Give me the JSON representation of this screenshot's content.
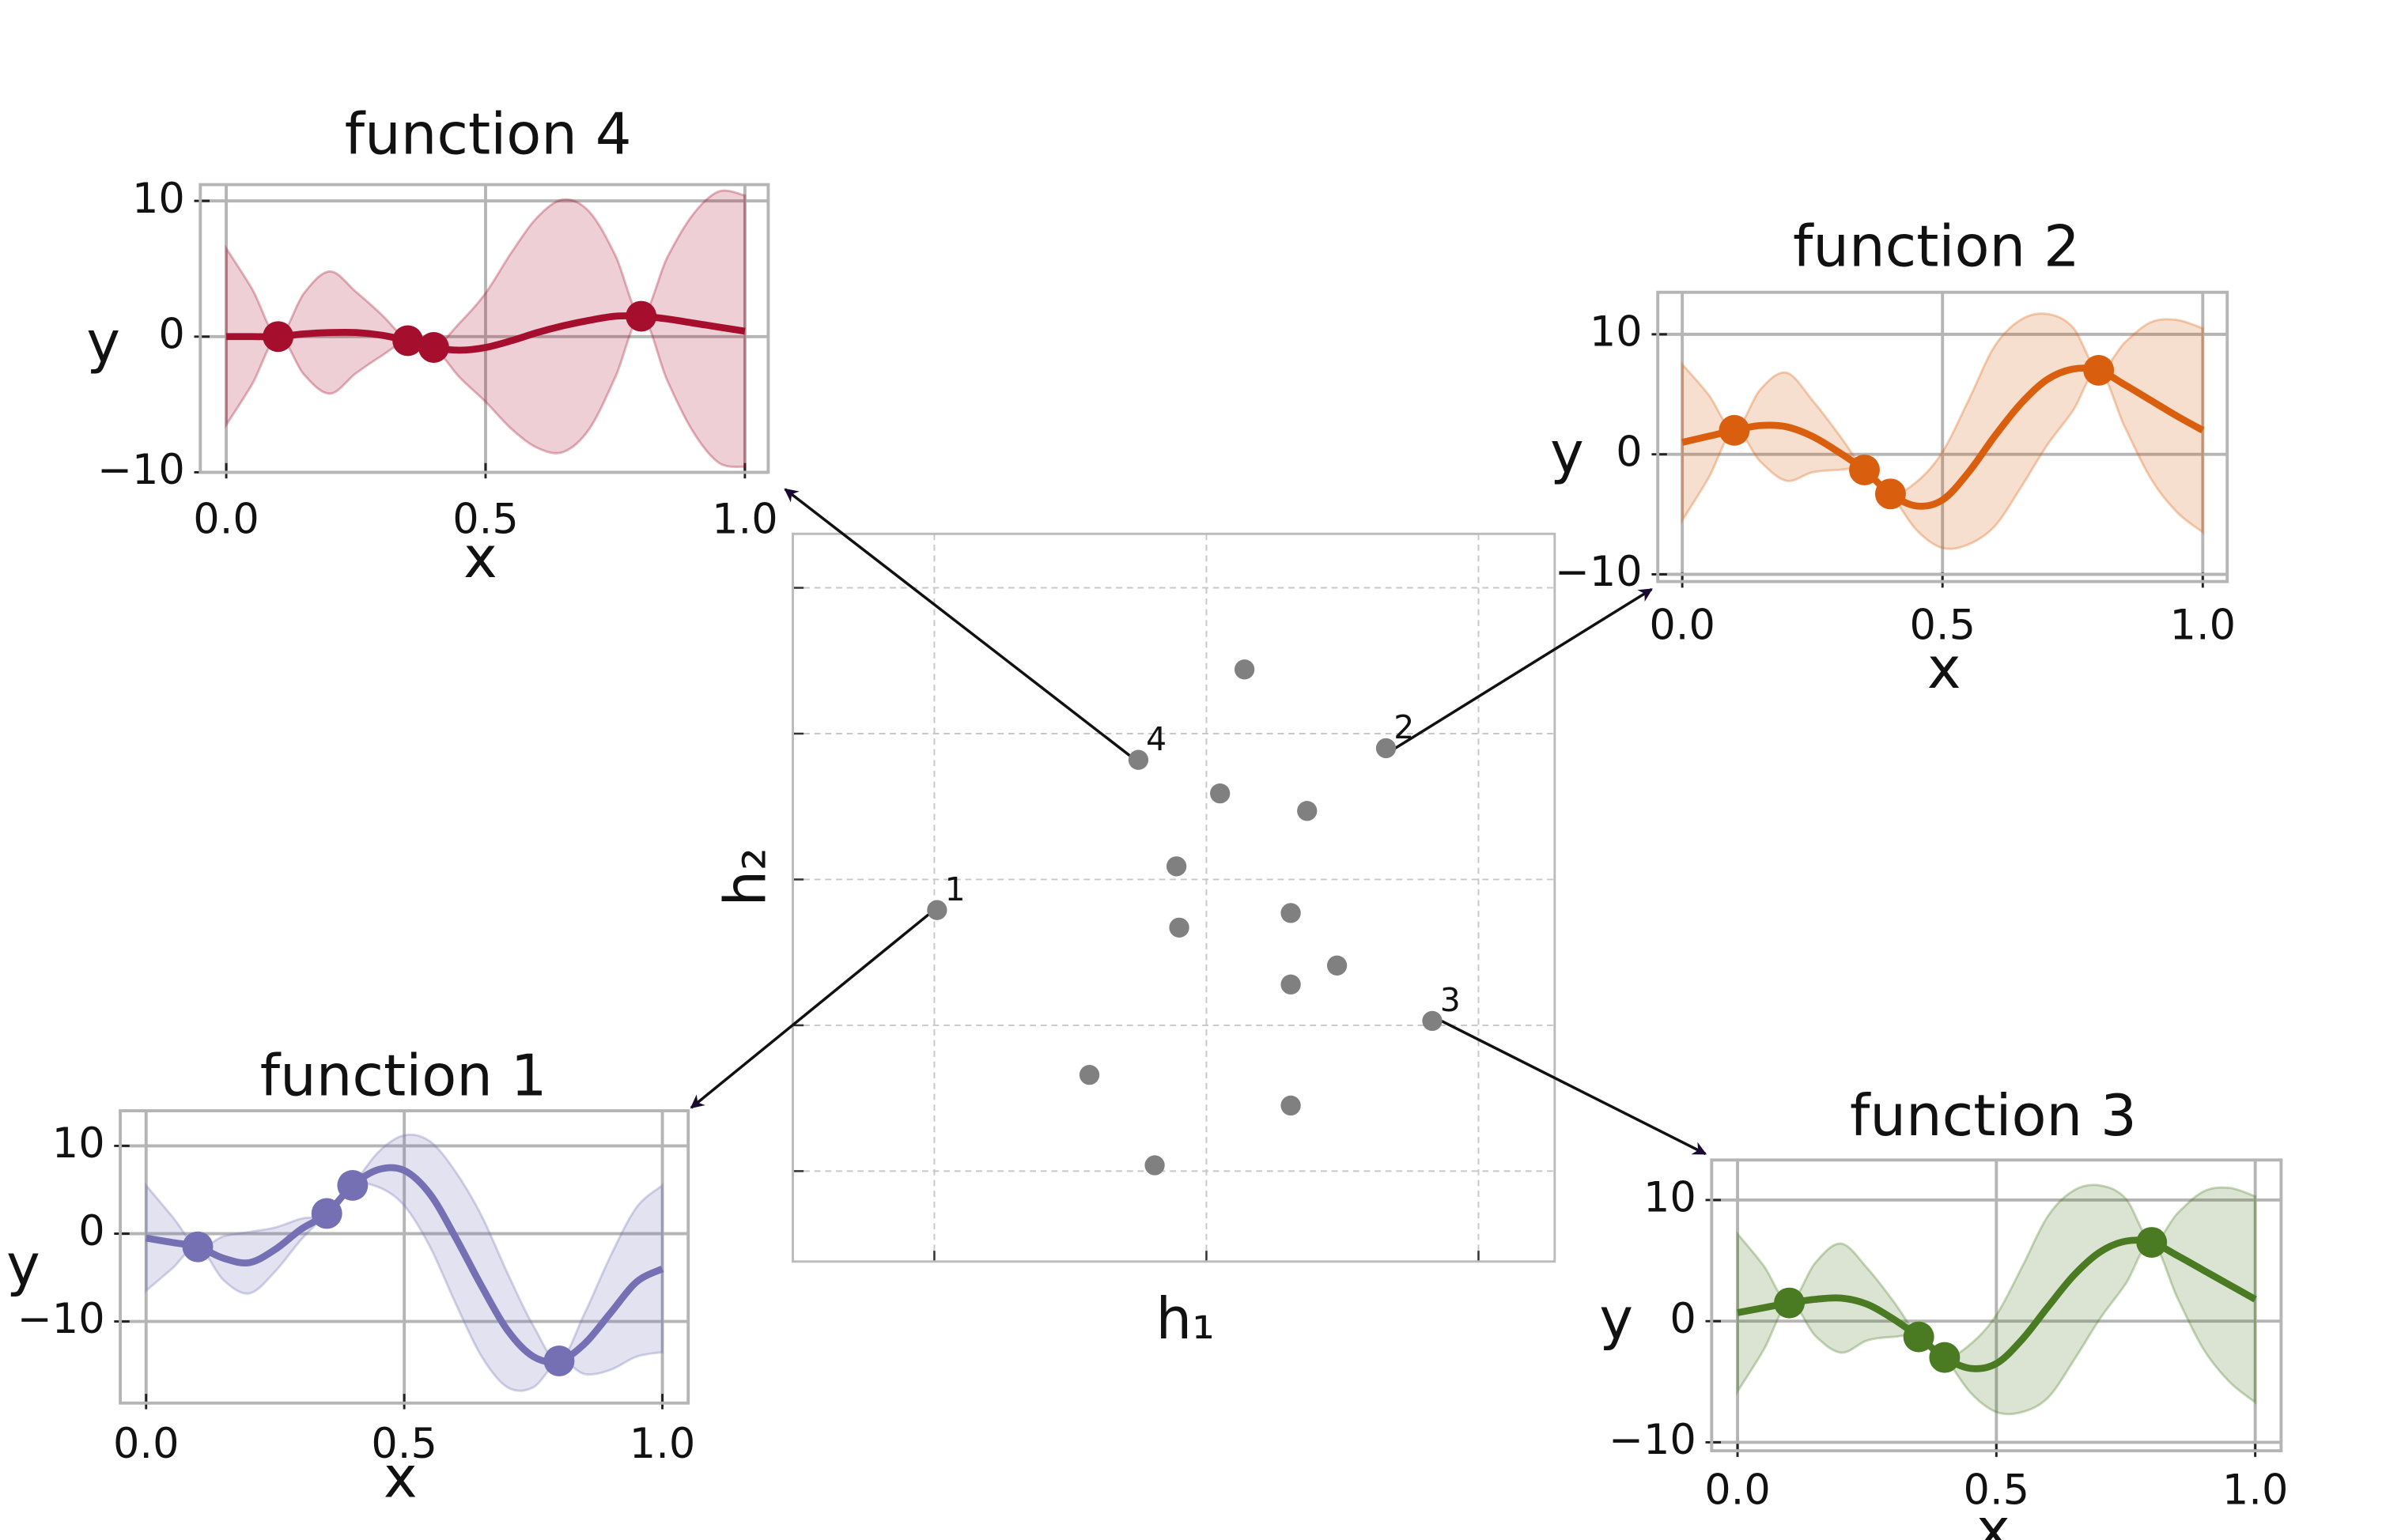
{
  "chart_data": [
    {
      "type": "scatter",
      "xlabel": "h₁",
      "ylabel": "h₂",
      "xlim": [
        -1.52,
        1.28
      ],
      "ylim": [
        -2.62,
        2.37
      ],
      "xticks": [
        -1,
        0,
        1
      ],
      "yticks": [
        -2,
        -1,
        0,
        1,
        2
      ],
      "grid": true,
      "color": "#808080",
      "x": [
        -0.25,
        0.66,
        -0.99,
        0.83,
        0.14,
        0.05,
        0.37,
        -0.11,
        -0.1,
        0.31,
        0.48,
        0.31,
        -0.43,
        0.31,
        -0.19
      ],
      "y": [
        0.82,
        0.9,
        -0.21,
        -0.97,
        1.44,
        0.59,
        0.47,
        0.09,
        -0.33,
        -0.23,
        -0.59,
        -0.72,
        -1.34,
        -1.55,
        -1.96
      ],
      "labels": [
        "4",
        "2",
        "1",
        "3",
        null,
        null,
        null,
        null,
        null,
        null,
        null,
        null,
        null,
        null,
        null
      ]
    },
    {
      "type": "line",
      "title": "function 4",
      "xlabel": "x",
      "ylabel": "y",
      "color": "#a50f2d",
      "xlim": [
        -0.05,
        1.045
      ],
      "ylim": [
        -10,
        11.2
      ],
      "xticks": [
        {
          "value": 0,
          "label": "0.0"
        },
        {
          "value": 0.5,
          "label": "0.5"
        },
        {
          "value": 1,
          "label": "1.0"
        }
      ],
      "yticks": [
        {
          "value": -10,
          "label": "−10"
        },
        0,
        10
      ],
      "grid": true,
      "x": [
        0,
        0.05,
        0.1,
        0.15,
        0.2,
        0.25,
        0.3,
        0.35,
        0.4,
        0.45,
        0.5,
        0.55,
        0.6,
        0.65,
        0.7,
        0.75,
        0.8,
        0.85,
        0.9,
        0.95,
        1
      ],
      "mean": [
        0,
        0,
        0,
        0.2,
        0.3,
        0.3,
        0.1,
        -0.3,
        -0.8,
        -1.0,
        -0.8,
        -0.3,
        0.3,
        0.8,
        1.2,
        1.5,
        1.5,
        1.3,
        1.0,
        0.7,
        0.4
      ],
      "upper": [
        6.5,
        3.5,
        0,
        3.2,
        4.8,
        3.3,
        1.6,
        -0.3,
        -0.8,
        1.0,
        3.2,
        6.2,
        8.8,
        10.1,
        9.2,
        6.0,
        1.5,
        5.8,
        9.0,
        10.7,
        10.4
      ],
      "lower": [
        -6.5,
        -3.5,
        0,
        -2.8,
        -4.2,
        -2.7,
        -1.4,
        -0.3,
        -0.8,
        -3.0,
        -4.8,
        -6.8,
        -8.2,
        -8.5,
        -6.8,
        -3.0,
        1.5,
        -3.2,
        -7.0,
        -9.3,
        -9.6
      ],
      "observed_x": [
        0.1,
        0.35,
        0.4,
        0.8
      ],
      "observed_y": [
        0,
        -0.3,
        -0.8,
        1.5
      ]
    },
    {
      "type": "line",
      "title": "function 2",
      "xlabel": "x",
      "ylabel": "y",
      "color": "#d95f0e",
      "xlim": [
        -0.047,
        1.047
      ],
      "ylim": [
        -10.6,
        13.5
      ],
      "xticks": [
        {
          "value": 0,
          "label": "0.0"
        },
        {
          "value": 0.5,
          "label": "0.5"
        },
        {
          "value": 1,
          "label": "1.0"
        }
      ],
      "yticks": [
        {
          "value": -10,
          "label": "−10"
        },
        0,
        10
      ],
      "grid": true,
      "x": [
        0,
        0.05,
        0.1,
        0.15,
        0.2,
        0.25,
        0.3,
        0.35,
        0.4,
        0.45,
        0.5,
        0.55,
        0.6,
        0.65,
        0.7,
        0.75,
        0.8,
        0.85,
        0.9,
        0.95,
        1
      ],
      "mean": [
        1,
        1.5,
        2,
        2.4,
        2.3,
        1.5,
        0.2,
        -1.3,
        -3.3,
        -4.3,
        -3.8,
        -1.5,
        1.5,
        4.2,
        6.2,
        7.1,
        7,
        5.8,
        4.5,
        3.2,
        2
      ],
      "upper": [
        7.5,
        5,
        2,
        5.4,
        6.8,
        4.5,
        1.7,
        -1.3,
        -3.3,
        -2.3,
        0.2,
        4.5,
        9,
        11.2,
        11.7,
        10.6,
        7,
        9.3,
        11,
        11.2,
        10.5
      ],
      "lower": [
        -5.5,
        -2,
        2,
        -0.6,
        -2.2,
        -1.5,
        -1.3,
        -1.3,
        -3.3,
        -6.3,
        -7.8,
        -7.5,
        -6,
        -2.8,
        0.7,
        3.6,
        7,
        2.3,
        -2,
        -4.8,
        -6.5
      ],
      "observed_x": [
        0.1,
        0.35,
        0.4,
        0.8
      ],
      "observed_y": [
        2,
        -1.3,
        -3.3,
        7
      ]
    },
    {
      "type": "line",
      "title": "function 1",
      "xlabel": "x",
      "ylabel": "y",
      "color": "#7570b3",
      "xlim": [
        -0.05,
        1.05
      ],
      "ylim": [
        -19.3,
        14
      ],
      "xticks": [
        {
          "value": 0,
          "label": "0.0"
        },
        {
          "value": 0.5,
          "label": "0.5"
        },
        {
          "value": 1,
          "label": "1.0"
        }
      ],
      "yticks": [
        {
          "value": -10,
          "label": "−10"
        },
        0,
        10
      ],
      "grid": true,
      "x": [
        0,
        0.05,
        0.1,
        0.15,
        0.2,
        0.25,
        0.3,
        0.35,
        0.4,
        0.45,
        0.5,
        0.55,
        0.6,
        0.65,
        0.7,
        0.75,
        0.8,
        0.85,
        0.9,
        0.95,
        1
      ],
      "mean": [
        -0.5,
        -1,
        -1.5,
        -2.8,
        -3.3,
        -1.8,
        0.5,
        2.3,
        5.5,
        7.3,
        7.2,
        4.5,
        -0.5,
        -6,
        -11,
        -14,
        -14.5,
        -12.5,
        -9,
        -5.5,
        -4
      ],
      "upper": [
        5.5,
        2,
        -1.5,
        -0.3,
        0.2,
        0.7,
        1.7,
        2.3,
        5.5,
        9.3,
        11.2,
        10.5,
        7,
        2,
        -4.5,
        -10.5,
        -14.5,
        -9,
        -2.5,
        3,
        5.5
      ],
      "lower": [
        -6.5,
        -4,
        -1.5,
        -5.3,
        -6.8,
        -4.3,
        -0.7,
        2.3,
        5.5,
        5.3,
        3.2,
        -1.5,
        -8,
        -14,
        -17.5,
        -17.5,
        -14.5,
        -16,
        -15.5,
        -14,
        -13.5
      ],
      "observed_x": [
        0.1,
        0.35,
        0.4,
        0.8
      ],
      "observed_y": [
        -1.5,
        2.3,
        5.5,
        -14.5
      ]
    },
    {
      "type": "line",
      "title": "function 3",
      "xlabel": "x",
      "ylabel": "y",
      "color": "#4a7a22",
      "xlim": [
        -0.05,
        1.05
      ],
      "ylim": [
        -10.7,
        13.3
      ],
      "xticks": [
        {
          "value": 0,
          "label": "0.0"
        },
        {
          "value": 0.5,
          "label": "0.5"
        },
        {
          "value": 1,
          "label": "1.0"
        }
      ],
      "yticks": [
        {
          "value": -10,
          "label": "−10"
        },
        0,
        10
      ],
      "grid": true,
      "x": [
        0,
        0.05,
        0.1,
        0.15,
        0.2,
        0.25,
        0.3,
        0.35,
        0.4,
        0.45,
        0.5,
        0.55,
        0.6,
        0.65,
        0.7,
        0.75,
        0.8,
        0.85,
        0.9,
        0.95,
        1
      ],
      "mean": [
        0.7,
        1.1,
        1.5,
        1.8,
        1.9,
        1.4,
        0.2,
        -1.3,
        -3,
        -3.9,
        -3.5,
        -1.5,
        1.2,
        3.8,
        5.7,
        6.6,
        6.5,
        5.4,
        4.2,
        3,
        1.8
      ],
      "upper": [
        7.2,
        4.6,
        1.5,
        4.8,
        6.4,
        4.4,
        1.7,
        -1.3,
        -3,
        -1.9,
        0.5,
        4.5,
        8.7,
        10.8,
        11.2,
        10.1,
        6.5,
        8.9,
        10.7,
        11,
        10.3
      ],
      "lower": [
        -5.8,
        -2.4,
        1.5,
        -1.2,
        -2.6,
        -1.6,
        -1.3,
        -1.3,
        -3,
        -5.9,
        -7.5,
        -7.5,
        -6.3,
        -3.2,
        0.2,
        3.1,
        6.5,
        1.9,
        -2.3,
        -5,
        -6.7
      ],
      "observed_x": [
        0.1,
        0.35,
        0.4,
        0.8
      ],
      "observed_y": [
        1.5,
        -1.3,
        -3,
        6.5
      ]
    }
  ]
}
